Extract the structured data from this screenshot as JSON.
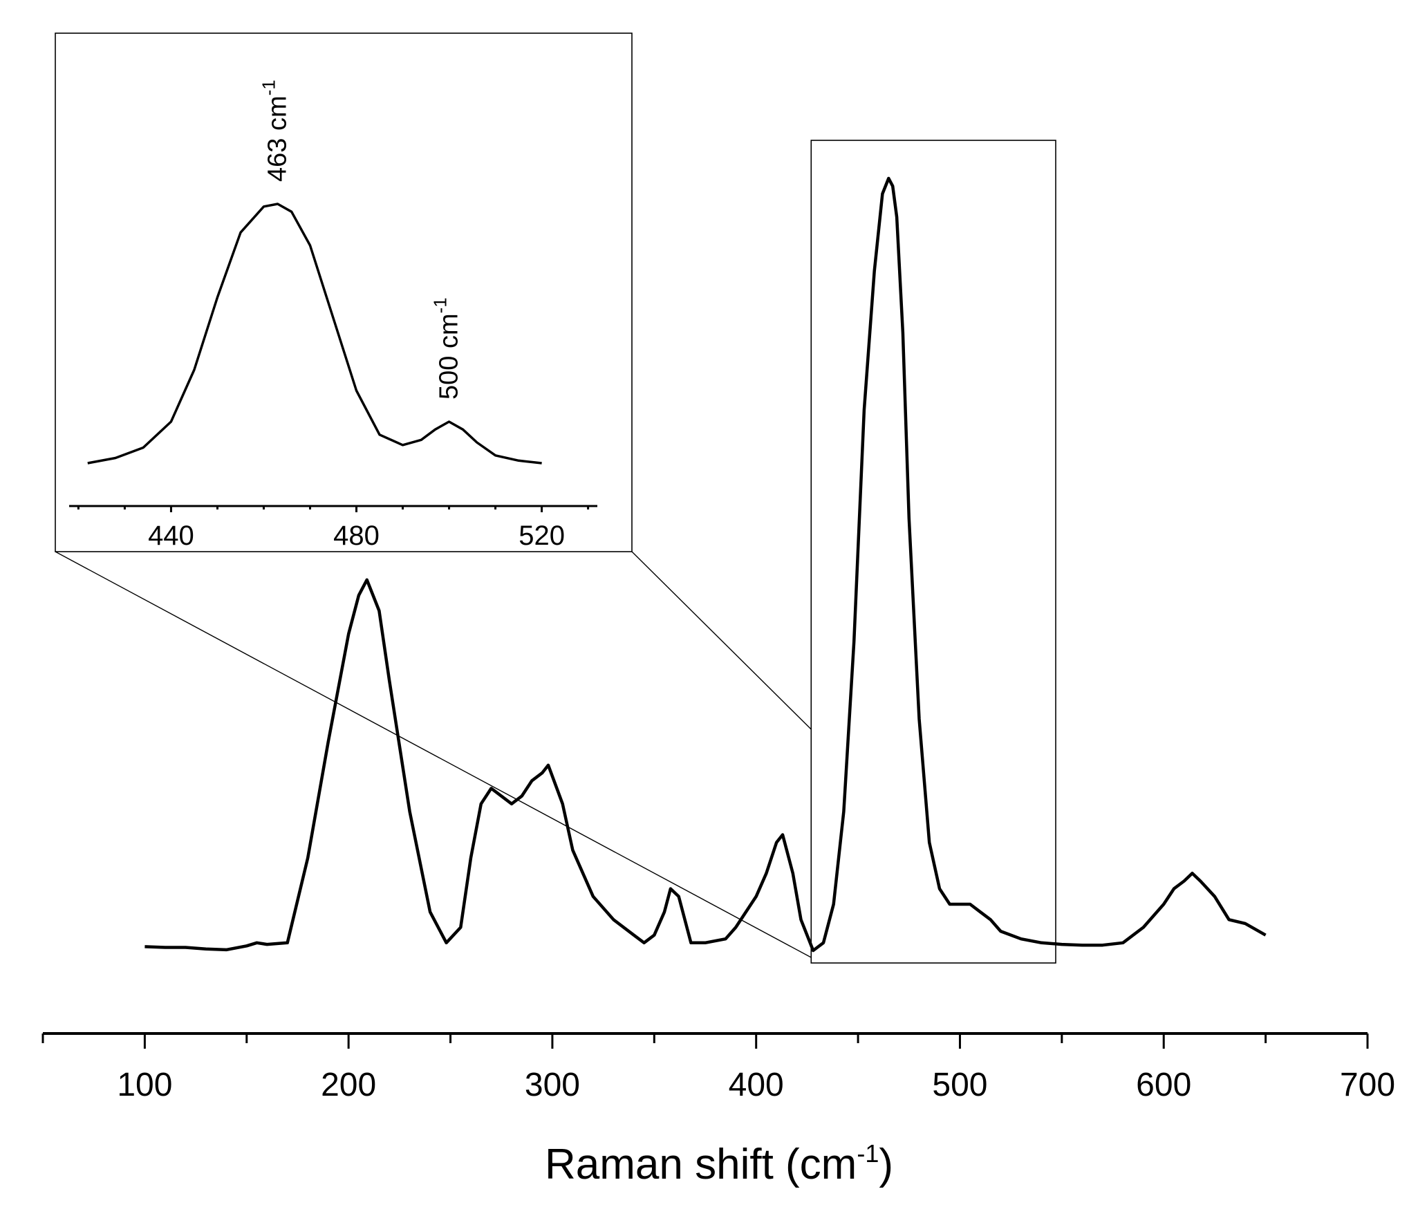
{
  "chart_data": [
    {
      "type": "line",
      "title": "",
      "xlabel": "Raman shift (cm",
      "xlabel_superscript": "-1",
      "xlabel_suffix": ")",
      "ylabel": "",
      "xlim": [
        50,
        700
      ],
      "ylim": [
        0,
        1.0
      ],
      "x_ticks": [
        "100",
        "200",
        "300",
        "400",
        "500",
        "600",
        "700"
      ],
      "grid": false,
      "legend": "none",
      "series": [
        {
          "x": [
            100,
            110,
            120,
            130,
            140,
            150,
            155,
            160,
            170,
            180,
            190,
            200,
            205,
            209,
            215,
            220,
            230,
            240,
            248,
            255,
            260,
            265,
            270,
            275,
            280,
            285,
            290,
            295,
            298,
            305,
            310,
            320,
            330,
            340,
            345,
            350,
            355,
            358,
            362,
            368,
            375,
            385,
            390,
            400,
            405,
            410,
            413,
            418,
            422,
            428,
            433,
            438,
            443,
            448,
            453,
            458,
            462,
            465,
            467,
            469,
            472,
            475,
            480,
            485,
            490,
            495,
            500,
            505,
            510,
            515,
            520,
            530,
            540,
            550,
            560,
            570,
            580,
            590,
            600,
            605,
            610,
            614,
            618,
            625,
            632,
            640,
            650
          ],
          "y": [
            0.005,
            0.004,
            0.004,
            0.002,
            0.001,
            0.006,
            0.01,
            0.008,
            0.01,
            0.12,
            0.27,
            0.41,
            0.46,
            0.48,
            0.44,
            0.35,
            0.18,
            0.05,
            0.01,
            0.03,
            0.12,
            0.19,
            0.21,
            0.2,
            0.19,
            0.2,
            0.22,
            0.23,
            0.24,
            0.19,
            0.13,
            0.07,
            0.04,
            0.02,
            0.01,
            0.02,
            0.05,
            0.08,
            0.07,
            0.01,
            0.01,
            0.015,
            0.03,
            0.07,
            0.1,
            0.14,
            0.15,
            0.1,
            0.04,
            0.0,
            0.01,
            0.06,
            0.18,
            0.4,
            0.7,
            0.88,
            0.98,
            1.0,
            0.99,
            0.95,
            0.8,
            0.56,
            0.3,
            0.14,
            0.08,
            0.06,
            0.06,
            0.06,
            0.05,
            0.04,
            0.025,
            0.015,
            0.01,
            0.008,
            0.007,
            0.007,
            0.01,
            0.03,
            0.06,
            0.08,
            0.09,
            0.1,
            0.09,
            0.07,
            0.04,
            0.035,
            0.02
          ]
        }
      ]
    },
    {
      "type": "line",
      "title": "",
      "xlabel": "",
      "ylabel": "",
      "xlim": [
        418,
        532
      ],
      "ylim": [
        0,
        1.0
      ],
      "x_ticks": [
        "440",
        "480",
        "520"
      ],
      "grid": false,
      "legend": "none",
      "annotations": [
        {
          "text": "463 cm",
          "superscript": "-1",
          "x": 463
        },
        {
          "text": "500 cm",
          "superscript": "-1",
          "x": 500
        }
      ],
      "series": [
        {
          "x": [
            422,
            428,
            434,
            440,
            445,
            450,
            455,
            460,
            463,
            466,
            470,
            475,
            480,
            485,
            490,
            494,
            497,
            500,
            503,
            506,
            510,
            515,
            520
          ],
          "y": [
            0.0,
            0.02,
            0.06,
            0.16,
            0.36,
            0.64,
            0.89,
            0.99,
            1.0,
            0.97,
            0.84,
            0.56,
            0.28,
            0.11,
            0.07,
            0.09,
            0.13,
            0.16,
            0.13,
            0.08,
            0.03,
            0.01,
            0.0
          ]
        }
      ]
    }
  ]
}
